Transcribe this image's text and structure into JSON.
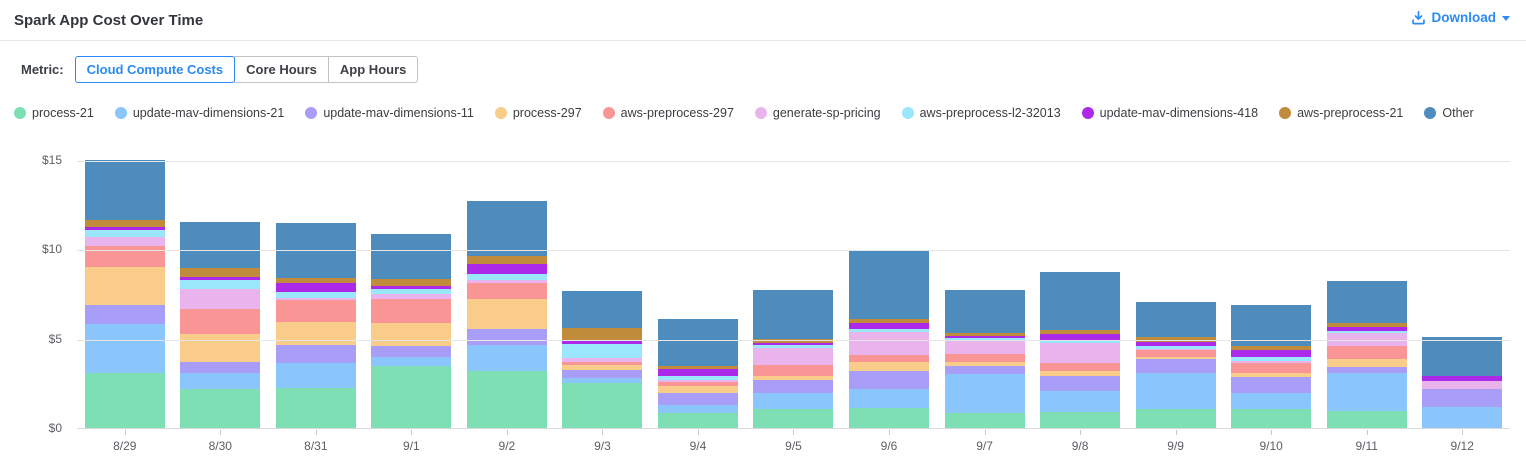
{
  "header": {
    "title": "Spark App Cost Over Time",
    "download_label": "Download"
  },
  "metric": {
    "label": "Metric:",
    "tabs": [
      {
        "label": "Cloud Compute Costs",
        "selected": true
      },
      {
        "label": "Core Hours",
        "selected": false
      },
      {
        "label": "App Hours",
        "selected": false
      }
    ]
  },
  "colors": {
    "accent_blue": "#2b8bf2",
    "gridline": "#e5e5e5",
    "axis_text": "#5b5e63"
  },
  "chart_data": {
    "type": "bar",
    "stacked": true,
    "title": "Spark App Cost Over Time",
    "xlabel": "",
    "ylabel": "Cloud Compute Costs ($)",
    "ylim": [
      0,
      15
    ],
    "grid": true,
    "legend_position": "top",
    "y_ticks": [
      {
        "label": "$0",
        "value": 0
      },
      {
        "label": "$5",
        "value": 5
      },
      {
        "label": "$10",
        "value": 10
      },
      {
        "label": "$15",
        "value": 15
      }
    ],
    "categories": [
      "8/29",
      "8/30",
      "8/31",
      "9/1",
      "9/2",
      "9/3",
      "9/4",
      "9/5",
      "9/6",
      "9/7",
      "9/8",
      "9/9",
      "9/10",
      "9/11",
      "9/12"
    ],
    "series": [
      {
        "name": "process-21",
        "color": "#7FDFB4",
        "values": [
          3.08,
          2.18,
          2.23,
          3.49,
          3.17,
          2.52,
          0.83,
          1.05,
          1.11,
          0.86,
          0.92,
          1.07,
          1.07,
          0.94,
          0.0
        ]
      },
      {
        "name": "update-mav-dimensions-21",
        "color": "#8AC6FB",
        "values": [
          2.72,
          0.9,
          1.44,
          0.49,
          1.5,
          0.3,
          0.47,
          0.9,
          1.07,
          2.18,
          1.13,
          1.99,
          0.9,
          2.12,
          1.18
        ]
      },
      {
        "name": "update-mav-dimensions-11",
        "color": "#A89EF8",
        "values": [
          1.07,
          0.6,
          0.99,
          0.6,
          0.88,
          0.41,
          0.66,
          0.75,
          0.99,
          0.45,
          0.84,
          0.79,
          0.9,
          0.38,
          1.01
        ]
      },
      {
        "name": "process-297",
        "color": "#F9CC8A",
        "values": [
          2.12,
          1.56,
          1.26,
          1.31,
          1.65,
          0.28,
          0.41,
          0.23,
          0.51,
          0.19,
          0.28,
          0.11,
          0.23,
          0.45,
          0.0
        ]
      },
      {
        "name": "aws-preprocess-297",
        "color": "#FA9595",
        "values": [
          1.22,
          1.41,
          1.24,
          1.31,
          0.94,
          0.17,
          0.21,
          0.62,
          0.43,
          0.49,
          0.47,
          0.41,
          0.53,
          0.68,
          0.0
        ]
      },
      {
        "name": "generate-sp-pricing",
        "color": "#E9B4EC",
        "values": [
          0.51,
          1.13,
          0.13,
          0.32,
          0.13,
          0.24,
          0.13,
          0.94,
          1.26,
          0.75,
          1.13,
          0.05,
          0.13,
          0.75,
          0.45
        ]
      },
      {
        "name": "aws-preprocess-l2-32013",
        "color": "#9AE6FA",
        "values": [
          0.39,
          0.51,
          0.32,
          0.28,
          0.38,
          0.8,
          0.19,
          0.13,
          0.15,
          0.13,
          0.09,
          0.19,
          0.24,
          0.13,
          0.0
        ]
      },
      {
        "name": "update-mav-dimensions-418",
        "color": "#AC29E9",
        "values": [
          0.17,
          0.15,
          0.49,
          0.15,
          0.53,
          0.22,
          0.41,
          0.15,
          0.34,
          0.13,
          0.43,
          0.23,
          0.38,
          0.19,
          0.28
        ]
      },
      {
        "name": "aws-preprocess-21",
        "color": "#C08C3C",
        "values": [
          0.34,
          0.51,
          0.32,
          0.41,
          0.47,
          0.65,
          0.15,
          0.23,
          0.23,
          0.15,
          0.19,
          0.23,
          0.23,
          0.24,
          0.0
        ]
      },
      {
        "name": "Other",
        "color": "#4E8CBE",
        "values": [
          3.38,
          2.59,
          3.06,
          2.5,
          3.04,
          2.11,
          2.66,
          2.74,
          3.83,
          2.4,
          3.26,
          1.99,
          2.29,
          2.33,
          2.2
        ]
      }
    ]
  }
}
